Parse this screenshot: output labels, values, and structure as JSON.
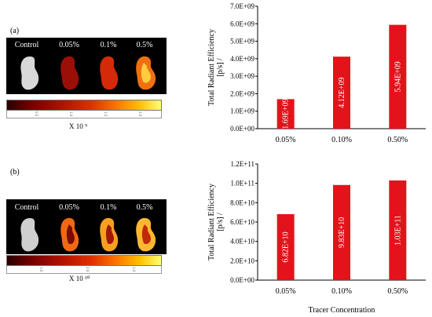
{
  "panels": [
    {
      "label": "(a)",
      "kidney_labels": [
        "Control",
        "0.05%",
        "0.1%",
        "0.5%"
      ],
      "colorbar_ticks": [
        "0.5",
        "1.0",
        "1.5",
        "2.0"
      ],
      "colorbar_multiplier": "X 10 ⁹"
    },
    {
      "label": "(b)",
      "kidney_labels": [
        "Control",
        "0.05%",
        "0.1%",
        "0.5%"
      ],
      "colorbar_ticks": [
        "1.0",
        "2.0",
        "3.0"
      ],
      "colorbar_multiplier": "X 10 ¹⁰"
    }
  ],
  "chart_data": [
    {
      "type": "bar",
      "categories": [
        "0.05%",
        "0.10%",
        "0.50%"
      ],
      "values": [
        1690000000,
        4120000000,
        5940000000
      ],
      "value_labels": [
        "1.69E+09",
        "4.12E+09",
        "5.94E+09"
      ],
      "ylabel": "Total Radiant Efficiency [p/s] / [µW/cm²]",
      "xlabel": "",
      "ylim": [
        0,
        7000000000
      ],
      "yticks": [
        "0.0E+00",
        "1.0E+09",
        "2.0E+09",
        "3.0E+09",
        "4.0E+09",
        "5.0E+09",
        "6.0E+09",
        "7.0E+09"
      ],
      "bar_color": "#e3131b"
    },
    {
      "type": "bar",
      "categories": [
        "0.05%",
        "0.10%",
        "0.50%"
      ],
      "values": [
        68200000000,
        98300000000,
        103000000000
      ],
      "value_labels": [
        "6.82E+10",
        "9.83E+10",
        "1.03E+11"
      ],
      "ylabel": "Total Radiant Efficiency [p/s] / [µW/cm²]",
      "xlabel": "Tracer Concentration",
      "ylim": [
        0,
        120000000000
      ],
      "yticks": [
        "0.0E+00",
        "2.0E+10",
        "4.0E+10",
        "6.0E+10",
        "8.0E+10",
        "1.0E+11",
        "1.2E+11"
      ],
      "bar_color": "#e3131b"
    }
  ]
}
